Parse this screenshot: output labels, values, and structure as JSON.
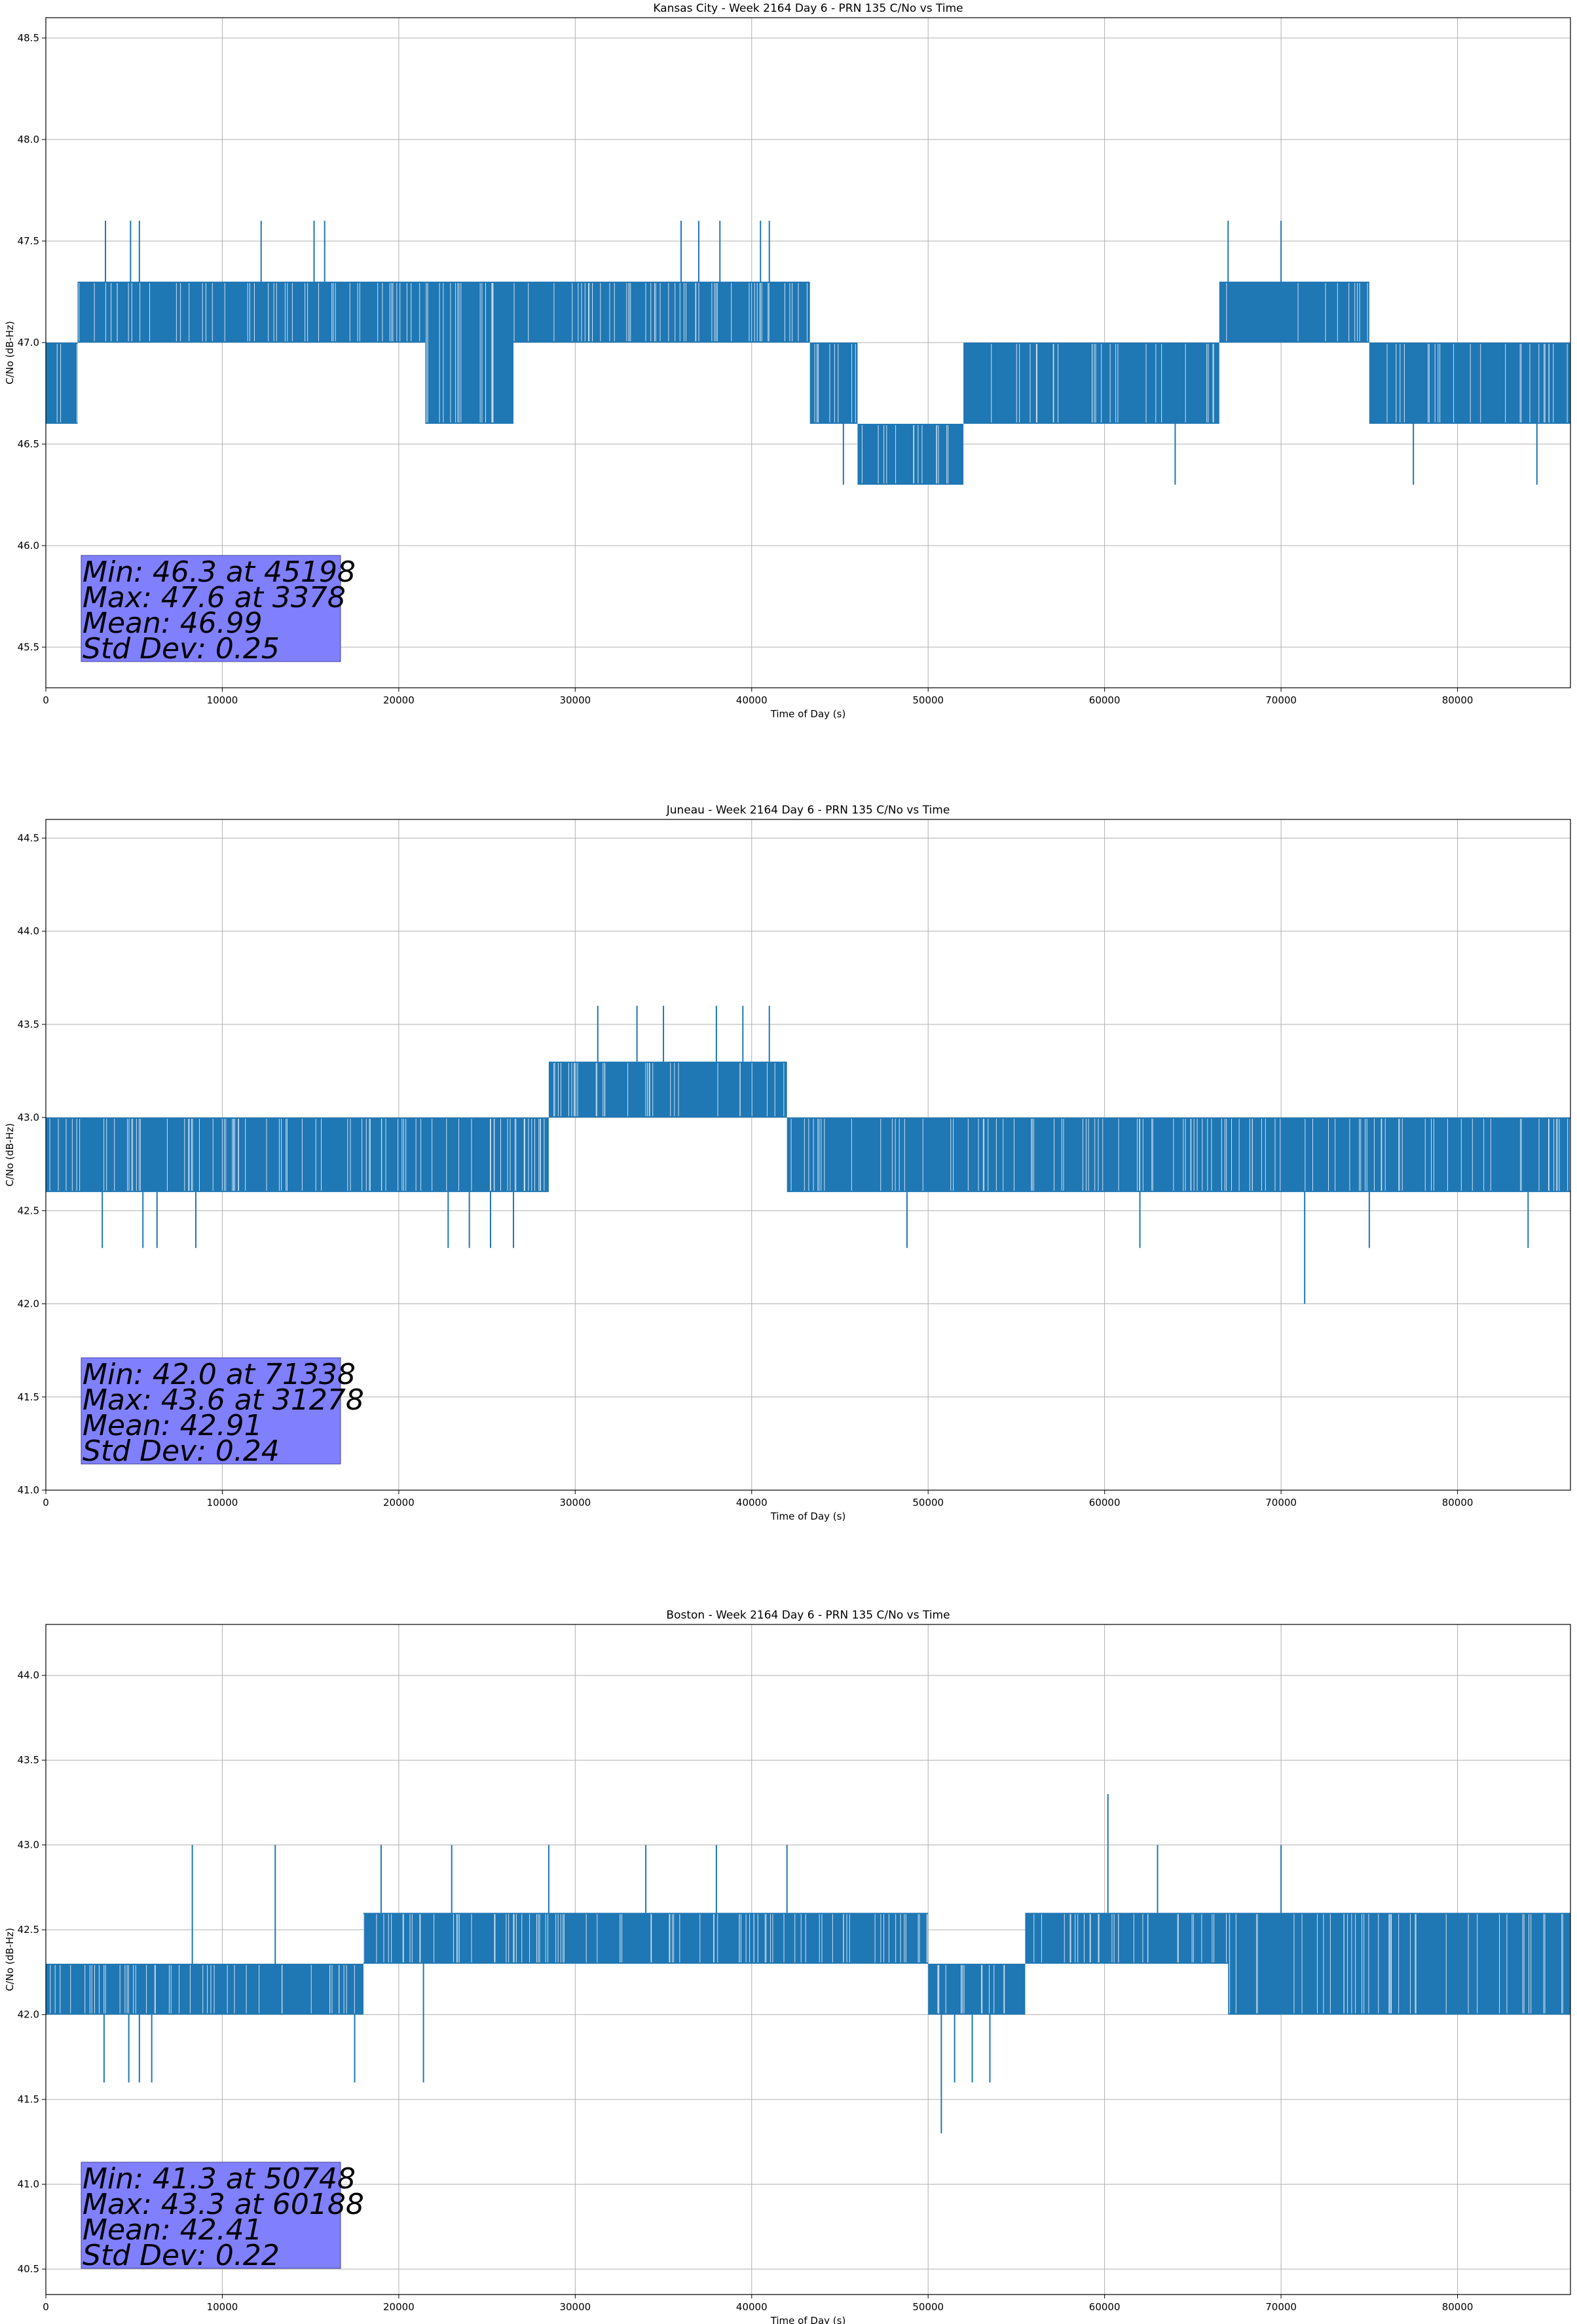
{
  "chart_data": [
    {
      "type": "line",
      "title": "Kansas City - Week 2164 Day 6 - PRN 135 C/No vs Time",
      "xlabel": "Time of Day (s)",
      "ylabel": "C/No (dB-Hz)",
      "xlim": [
        0,
        86400
      ],
      "ylim": [
        45.3,
        48.6
      ],
      "xticks": [
        0,
        10000,
        20000,
        30000,
        40000,
        50000,
        60000,
        70000,
        80000
      ],
      "xtick_labels": [
        "0",
        "10000",
        "20000",
        "30000",
        "40000",
        "50000",
        "60000",
        "70000",
        "80000"
      ],
      "yticks": [
        45.5,
        46.0,
        46.5,
        47.0,
        47.5,
        48.0,
        48.5
      ],
      "ytick_labels": [
        "45.5",
        "46.0",
        "46.5",
        "47.0",
        "47.5",
        "48.0",
        "48.5"
      ],
      "grid": true,
      "series_color": "#1f77b4",
      "band_segments": [
        {
          "x": [
            0,
            1800
          ],
          "low": 46.6,
          "high": 47.0
        },
        {
          "x": [
            1800,
            21500
          ],
          "low": 47.0,
          "high": 47.3
        },
        {
          "x": [
            21500,
            26500
          ],
          "low": 46.6,
          "high": 47.3
        },
        {
          "x": [
            26500,
            35500
          ],
          "low": 47.0,
          "high": 47.3
        },
        {
          "x": [
            35500,
            43300
          ],
          "low": 47.0,
          "high": 47.3
        },
        {
          "x": [
            43300,
            46000
          ],
          "low": 46.6,
          "high": 47.0
        },
        {
          "x": [
            46000,
            52000
          ],
          "low": 46.3,
          "high": 46.6
        },
        {
          "x": [
            52000,
            66500
          ],
          "low": 46.6,
          "high": 47.0
        },
        {
          "x": [
            66500,
            75000
          ],
          "low": 47.0,
          "high": 47.3
        },
        {
          "x": [
            75000,
            86400
          ],
          "low": 46.6,
          "high": 47.0
        }
      ],
      "spikes": [
        {
          "x": 3378,
          "y": 47.6
        },
        {
          "x": 4800,
          "y": 47.6
        },
        {
          "x": 5300,
          "y": 47.6
        },
        {
          "x": 12200,
          "y": 47.6
        },
        {
          "x": 15200,
          "y": 47.6
        },
        {
          "x": 15800,
          "y": 47.6
        },
        {
          "x": 36000,
          "y": 47.6
        },
        {
          "x": 37000,
          "y": 47.6
        },
        {
          "x": 38200,
          "y": 47.6
        },
        {
          "x": 40500,
          "y": 47.6
        },
        {
          "x": 41000,
          "y": 47.6
        },
        {
          "x": 67000,
          "y": 47.6
        },
        {
          "x": 70000,
          "y": 47.6
        },
        {
          "x": 45198,
          "y": 46.3
        },
        {
          "x": 64000,
          "y": 46.3
        },
        {
          "x": 77500,
          "y": 46.3
        },
        {
          "x": 84500,
          "y": 46.3
        }
      ],
      "stats": {
        "min_line": "Min: 46.3 at 45198",
        "max_line": "Max: 47.6 at 3378",
        "mean_line": "Mean: 46.99",
        "std_line": "Std Dev: 0.25"
      }
    },
    {
      "type": "line",
      "title": "Juneau - Week 2164 Day 6 - PRN 135 C/No vs Time",
      "xlabel": "Time of Day (s)",
      "ylabel": "C/No (dB-Hz)",
      "xlim": [
        0,
        86400
      ],
      "ylim": [
        41.0,
        44.6
      ],
      "xticks": [
        0,
        10000,
        20000,
        30000,
        40000,
        50000,
        60000,
        70000,
        80000
      ],
      "xtick_labels": [
        "0",
        "10000",
        "20000",
        "30000",
        "40000",
        "50000",
        "60000",
        "70000",
        "80000"
      ],
      "yticks": [
        41.0,
        41.5,
        42.0,
        42.5,
        43.0,
        43.5,
        44.0,
        44.5
      ],
      "ytick_labels": [
        "41.0",
        "41.5",
        "42.0",
        "42.5",
        "43.0",
        "43.5",
        "44.0",
        "44.5"
      ],
      "grid": true,
      "series_color": "#1f77b4",
      "band_segments": [
        {
          "x": [
            0,
            28500
          ],
          "low": 42.6,
          "high": 43.0
        },
        {
          "x": [
            28500,
            42000
          ],
          "low": 43.0,
          "high": 43.3
        },
        {
          "x": [
            42000,
            86400
          ],
          "low": 42.6,
          "high": 43.0
        }
      ],
      "spikes": [
        {
          "x": 3200,
          "y": 42.3
        },
        {
          "x": 5500,
          "y": 42.3
        },
        {
          "x": 6300,
          "y": 42.3
        },
        {
          "x": 8500,
          "y": 42.3
        },
        {
          "x": 22800,
          "y": 42.3
        },
        {
          "x": 24000,
          "y": 42.3
        },
        {
          "x": 25200,
          "y": 42.3
        },
        {
          "x": 26500,
          "y": 42.3
        },
        {
          "x": 48800,
          "y": 42.3
        },
        {
          "x": 62000,
          "y": 42.3
        },
        {
          "x": 71338,
          "y": 42.0
        },
        {
          "x": 75000,
          "y": 42.3
        },
        {
          "x": 84000,
          "y": 42.3
        },
        {
          "x": 31278,
          "y": 43.6
        },
        {
          "x": 33500,
          "y": 43.6
        },
        {
          "x": 35000,
          "y": 43.6
        },
        {
          "x": 38000,
          "y": 43.6
        },
        {
          "x": 39500,
          "y": 43.6
        },
        {
          "x": 41000,
          "y": 43.6
        }
      ],
      "stats": {
        "min_line": "Min: 42.0 at 71338",
        "max_line": "Max: 43.6 at 31278",
        "mean_line": "Mean: 42.91",
        "std_line": "Std Dev: 0.24"
      }
    },
    {
      "type": "line",
      "title": "Boston - Week 2164 Day 6 - PRN 135 C/No vs Time",
      "xlabel": "Time of Day (s)",
      "ylabel": "C/No (dB-Hz)",
      "xlim": [
        0,
        86400
      ],
      "ylim": [
        40.35,
        44.3
      ],
      "xticks": [
        0,
        10000,
        20000,
        30000,
        40000,
        50000,
        60000,
        70000,
        80000
      ],
      "xtick_labels": [
        "0",
        "10000",
        "20000",
        "30000",
        "40000",
        "50000",
        "60000",
        "70000",
        "80000"
      ],
      "yticks": [
        40.5,
        41.0,
        41.5,
        42.0,
        42.5,
        43.0,
        43.5,
        44.0
      ],
      "ytick_labels": [
        "40.5",
        "41.0",
        "41.5",
        "42.0",
        "42.5",
        "43.0",
        "43.5",
        "44.0"
      ],
      "grid": true,
      "series_color": "#1f77b4",
      "band_segments": [
        {
          "x": [
            0,
            18000
          ],
          "low": 42.0,
          "high": 42.3
        },
        {
          "x": [
            18000,
            50000
          ],
          "low": 42.3,
          "high": 42.6
        },
        {
          "x": [
            50000,
            55500
          ],
          "low": 42.0,
          "high": 42.3
        },
        {
          "x": [
            55500,
            67000
          ],
          "low": 42.3,
          "high": 42.6
        },
        {
          "x": [
            67000,
            86400
          ],
          "low": 42.0,
          "high": 42.6
        }
      ],
      "spikes": [
        {
          "x": 3300,
          "y": 41.6
        },
        {
          "x": 4700,
          "y": 41.6
        },
        {
          "x": 5300,
          "y": 41.6
        },
        {
          "x": 6000,
          "y": 41.6
        },
        {
          "x": 17500,
          "y": 41.6
        },
        {
          "x": 21400,
          "y": 41.6
        },
        {
          "x": 50748,
          "y": 41.3
        },
        {
          "x": 51500,
          "y": 41.6
        },
        {
          "x": 52500,
          "y": 41.6
        },
        {
          "x": 53500,
          "y": 41.6
        },
        {
          "x": 8300,
          "y": 43.0
        },
        {
          "x": 13000,
          "y": 43.0
        },
        {
          "x": 19000,
          "y": 43.0
        },
        {
          "x": 23000,
          "y": 43.0
        },
        {
          "x": 28500,
          "y": 43.0
        },
        {
          "x": 34000,
          "y": 43.0
        },
        {
          "x": 38000,
          "y": 43.0
        },
        {
          "x": 42000,
          "y": 43.0
        },
        {
          "x": 60188,
          "y": 43.3
        },
        {
          "x": 63000,
          "y": 43.0
        },
        {
          "x": 70000,
          "y": 43.0
        }
      ],
      "stats": {
        "min_line": "Min: 41.3 at 50748",
        "max_line": "Max: 43.3 at 60188",
        "mean_line": "Mean: 42.41",
        "std_line": "Std Dev: 0.22"
      }
    }
  ]
}
